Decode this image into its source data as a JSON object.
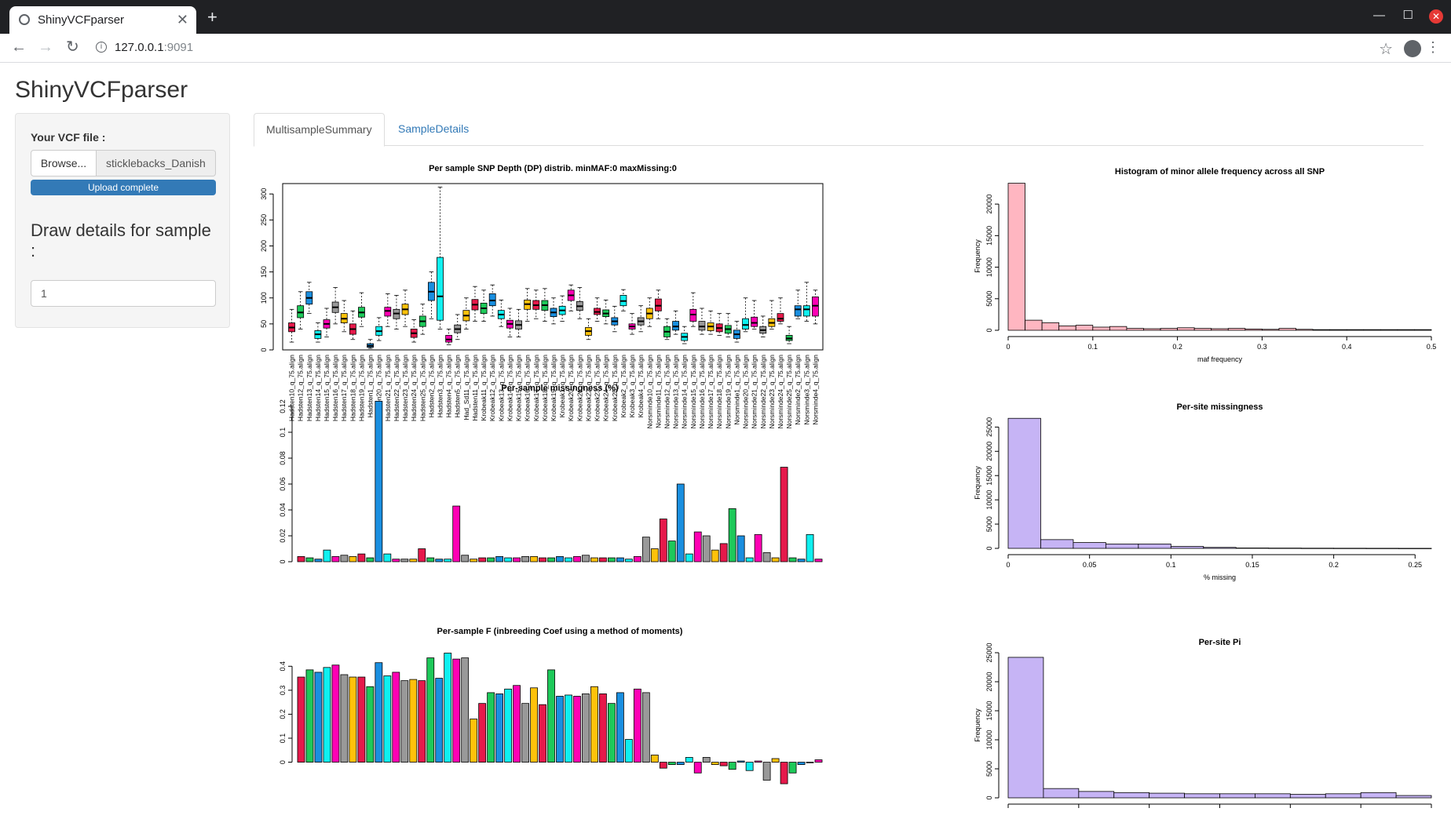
{
  "browser": {
    "tab_title": "ShinyVCFparser",
    "url_host": "127.0.0.1",
    "url_port": ":9091",
    "icons": [
      "favicon-icon",
      "close-icon",
      "new-tab-icon",
      "back-icon",
      "forward-icon",
      "reload-icon",
      "info-icon",
      "bookmark-star-icon",
      "profile-icon",
      "menu-icon"
    ]
  },
  "app": {
    "title": "ShinyVCFparser",
    "sidebar": {
      "vcf_label": "Your VCF file :",
      "browse_label": "Browse...",
      "file_name": "sticklebacks_Danish",
      "upload_status": "Upload complete",
      "draw_label": "Draw details for sample :",
      "sample_value": "1"
    },
    "tabs": [
      {
        "label": "MultisampleSummary",
        "active": true
      },
      {
        "label": "SampleDetails",
        "active": false
      }
    ]
  },
  "colors": {
    "palette": [
      "#e6194b",
      "#1ec95a",
      "#1a8fe0",
      "#0ff0f0",
      "#ff00b4",
      "#999999",
      "#ffc20a"
    ],
    "pink": "#ffb6c1",
    "lavender": "#c6b4f5",
    "progress": "#337ab7",
    "link": "#337ab7"
  },
  "samples": [
    "Hadsten10_q_75.align",
    "Hadsten12_q_75.align",
    "Hadsten13_q_75.align",
    "Hadsten14_q_75.align",
    "Hadsten15_q_75.align",
    "Hadsten16_q_75.align",
    "Hadsten17_q_75.align",
    "Hadsten18_q_75.align",
    "Hadsten19_q_75.align",
    "Hadsten1_q_75.align",
    "Hadsten20_q_75.align",
    "Hadsten21_q_75.align",
    "Hadsten22_q_75.align",
    "Hadsten23_q_75.align",
    "Hadsten24_q_75.align",
    "Hadsten25_q_75.align",
    "Hadsten2_q_75.align",
    "Hadsten3_q_75.align",
    "Hadsten4_q_75.align",
    "Hadsten5_q_75.align",
    "Had_Sd11_q_75.align",
    "Hadsten11_q_75.align",
    "Krobeak11_q_75.align",
    "Krobeak12_q_75.align",
    "Krobeak13_q_75.align",
    "Krobeak14_q_75.align",
    "Krobeak15_q_75.align",
    "Krobeak16_q_75.align",
    "Krobeak17_q_75.align",
    "Krobeak18_q_75.align",
    "Krobeak19_q_75.align",
    "Krobeak1_q_75.align",
    "Krobeak20_q_75.align",
    "Krobeak21_q_75.align",
    "Krobeak22_q_75.align",
    "Krobeak23_q_75.align",
    "Krobeak24_q_75.align",
    "Krobeak25_q_75.align",
    "Krobeak2_q_75.align",
    "Krobeak3_q_75.align",
    "Krobeak4_q_75.align",
    "Norsminde10_q_75.align",
    "Norsminde11_q_75.align",
    "Norsminde12_q_75.align",
    "Norsminde13_q_75.align",
    "Norsminde14_q_75.align",
    "Norsminde15_q_75.align",
    "Norsminde16_q_75.align",
    "Norsminde17_q_75.align",
    "Norsminde18_q_75.align",
    "Norsminde19_q_75.align",
    "Norsminde1_q_75.align",
    "Norsminde20_q_75.align",
    "Norsminde21_q_75.align",
    "Norsminde22_q_75.align",
    "Norsminde23_q_75.align",
    "Norsminde24_q_75.align",
    "Norsminde25_q_75.align",
    "Norsminde2_q_75.align",
    "Norsminde3_q_75.align",
    "Norsminde4_q_75.align"
  ],
  "chart_data": [
    {
      "type": "box",
      "title": "Per sample SNP Depth (DP) distrib. minMAF:0 maxMissing:0",
      "ylim": [
        0,
        320
      ],
      "yticks": [
        0,
        50,
        100,
        150,
        200,
        250,
        300
      ],
      "boxes": [
        {
          "low": 15,
          "q1": 35,
          "med": 43,
          "q3": 52,
          "high": 78
        },
        {
          "low": 40,
          "q1": 62,
          "med": 72,
          "q3": 85,
          "high": 112
        },
        {
          "low": 70,
          "q1": 88,
          "med": 100,
          "q3": 112,
          "high": 130
        },
        {
          "low": 15,
          "q1": 22,
          "med": 30,
          "q3": 37,
          "high": 52
        },
        {
          "low": 25,
          "q1": 42,
          "med": 50,
          "q3": 58,
          "high": 80
        },
        {
          "low": 50,
          "q1": 72,
          "med": 82,
          "q3": 92,
          "high": 120
        },
        {
          "low": 35,
          "q1": 52,
          "med": 60,
          "q3": 70,
          "high": 95
        },
        {
          "low": 20,
          "q1": 30,
          "med": 40,
          "q3": 50,
          "high": 75
        },
        {
          "low": 45,
          "q1": 63,
          "med": 72,
          "q3": 82,
          "high": 110
        },
        {
          "low": 3,
          "q1": 5,
          "med": 8,
          "q3": 12,
          "high": 20
        },
        {
          "low": 18,
          "q1": 28,
          "med": 36,
          "q3": 45,
          "high": 62
        },
        {
          "low": 45,
          "q1": 65,
          "med": 75,
          "q3": 82,
          "high": 108
        },
        {
          "low": 40,
          "q1": 60,
          "med": 70,
          "q3": 78,
          "high": 105
        },
        {
          "low": 45,
          "q1": 68,
          "med": 78,
          "q3": 88,
          "high": 115
        },
        {
          "low": 15,
          "q1": 24,
          "med": 32,
          "q3": 40,
          "high": 58
        },
        {
          "low": 30,
          "q1": 45,
          "med": 55,
          "q3": 65,
          "high": 88
        },
        {
          "low": 60,
          "q1": 95,
          "med": 112,
          "q3": 130,
          "high": 150
        },
        {
          "low": 40,
          "q1": 57,
          "med": 103,
          "q3": 178,
          "high": 313
        },
        {
          "low": 10,
          "q1": 15,
          "med": 20,
          "q3": 28,
          "high": 40
        },
        {
          "low": 20,
          "q1": 33,
          "med": 40,
          "q3": 48,
          "high": 68
        },
        {
          "low": 40,
          "q1": 56,
          "med": 66,
          "q3": 76,
          "high": 100
        },
        {
          "low": 55,
          "q1": 77,
          "med": 87,
          "q3": 97,
          "high": 122
        },
        {
          "low": 55,
          "q1": 70,
          "med": 80,
          "q3": 90,
          "high": 115
        },
        {
          "low": 65,
          "q1": 85,
          "med": 95,
          "q3": 108,
          "high": 125
        },
        {
          "low": 45,
          "q1": 60,
          "med": 68,
          "q3": 76,
          "high": 96
        },
        {
          "low": 25,
          "q1": 42,
          "med": 50,
          "q3": 57,
          "high": 80
        },
        {
          "low": 25,
          "q1": 40,
          "med": 48,
          "q3": 56,
          "high": 78
        },
        {
          "low": 55,
          "q1": 78,
          "med": 88,
          "q3": 96,
          "high": 118
        },
        {
          "low": 60,
          "q1": 78,
          "med": 86,
          "q3": 95,
          "high": 115
        },
        {
          "low": 55,
          "q1": 76,
          "med": 86,
          "q3": 95,
          "high": 118
        },
        {
          "low": 50,
          "q1": 64,
          "med": 72,
          "q3": 80,
          "high": 100
        },
        {
          "low": 55,
          "q1": 68,
          "med": 76,
          "q3": 84,
          "high": 104
        },
        {
          "low": 75,
          "q1": 95,
          "med": 105,
          "q3": 115,
          "high": 125
        },
        {
          "low": 60,
          "q1": 76,
          "med": 84,
          "q3": 93,
          "high": 120
        },
        {
          "low": 20,
          "q1": 28,
          "med": 36,
          "q3": 43,
          "high": 60
        },
        {
          "low": 55,
          "q1": 68,
          "med": 73,
          "q3": 80,
          "high": 100
        },
        {
          "low": 50,
          "q1": 64,
          "med": 70,
          "q3": 77,
          "high": 96
        },
        {
          "low": 35,
          "q1": 48,
          "med": 55,
          "q3": 62,
          "high": 84
        },
        {
          "low": 75,
          "q1": 85,
          "med": 94,
          "q3": 105,
          "high": 116
        },
        {
          "low": 30,
          "q1": 40,
          "med": 45,
          "q3": 50,
          "high": 70
        },
        {
          "low": 35,
          "q1": 48,
          "med": 55,
          "q3": 62,
          "high": 85
        },
        {
          "low": 45,
          "q1": 60,
          "med": 70,
          "q3": 80,
          "high": 100
        },
        {
          "low": 60,
          "q1": 75,
          "med": 85,
          "q3": 98,
          "high": 115
        },
        {
          "low": 20,
          "q1": 25,
          "med": 35,
          "q3": 45,
          "high": 60
        },
        {
          "low": 30,
          "q1": 38,
          "med": 45,
          "q3": 55,
          "high": 75
        },
        {
          "low": 12,
          "q1": 18,
          "med": 25,
          "q3": 32,
          "high": 45
        },
        {
          "low": 45,
          "q1": 55,
          "med": 68,
          "q3": 78,
          "high": 110
        },
        {
          "low": 30,
          "q1": 38,
          "med": 45,
          "q3": 55,
          "high": 80
        },
        {
          "low": 30,
          "q1": 37,
          "med": 45,
          "q3": 52,
          "high": 75
        },
        {
          "low": 28,
          "q1": 35,
          "med": 42,
          "q3": 50,
          "high": 70
        },
        {
          "low": 25,
          "q1": 32,
          "med": 40,
          "q3": 47,
          "high": 70
        },
        {
          "low": 15,
          "q1": 22,
          "med": 30,
          "q3": 38,
          "high": 55
        },
        {
          "low": 35,
          "q1": 40,
          "med": 48,
          "q3": 60,
          "high": 100
        },
        {
          "low": 40,
          "q1": 45,
          "med": 52,
          "q3": 63,
          "high": 95
        },
        {
          "low": 25,
          "q1": 32,
          "med": 38,
          "q3": 45,
          "high": 65
        },
        {
          "low": 40,
          "q1": 45,
          "med": 52,
          "q3": 60,
          "high": 95
        },
        {
          "low": 50,
          "q1": 55,
          "med": 60,
          "q3": 70,
          "high": 100
        },
        {
          "low": 12,
          "q1": 18,
          "med": 22,
          "q3": 28,
          "high": 45
        },
        {
          "low": 60,
          "q1": 65,
          "med": 78,
          "q3": 85,
          "high": 115
        },
        {
          "low": 55,
          "q1": 65,
          "med": 78,
          "q3": 85,
          "high": 130
        },
        {
          "low": 50,
          "q1": 65,
          "med": 85,
          "q3": 102,
          "high": 115
        }
      ]
    },
    {
      "type": "bar",
      "title": "Per-sample missingness (%)",
      "ylim": [
        0,
        0.12
      ],
      "yticks": [
        0.0,
        0.02,
        0.04,
        0.06,
        0.08,
        0.1,
        0.12
      ],
      "values": [
        0.004,
        0.003,
        0.002,
        0.009,
        0.004,
        0.005,
        0.004,
        0.006,
        0.003,
        0.124,
        0.006,
        0.002,
        0.002,
        0.002,
        0.01,
        0.003,
        0.002,
        0.002,
        0.043,
        0.005,
        0.002,
        0.003,
        0.003,
        0.004,
        0.003,
        0.003,
        0.004,
        0.004,
        0.003,
        0.003,
        0.004,
        0.003,
        0.004,
        0.005,
        0.003,
        0.003,
        0.003,
        0.003,
        0.002,
        0.004,
        0.019,
        0.01,
        0.033,
        0.016,
        0.06,
        0.006,
        0.023,
        0.02,
        0.009,
        0.014,
        0.041,
        0.02,
        0.003,
        0.021,
        0.007,
        0.003,
        0.073,
        0.003,
        0.002,
        0.021,
        0.002
      ]
    },
    {
      "type": "bar",
      "title": "Per-sample F (inbreeding Coef using a method of moments)",
      "ylim": [
        -0.08,
        0.45
      ],
      "yticks": [
        0.0,
        0.1,
        0.2,
        0.3,
        0.4
      ],
      "values": [
        0.355,
        0.385,
        0.375,
        0.395,
        0.405,
        0.365,
        0.355,
        0.355,
        0.315,
        0.415,
        0.36,
        0.375,
        0.34,
        0.345,
        0.34,
        0.435,
        0.35,
        0.455,
        0.43,
        0.435,
        0.18,
        0.245,
        0.29,
        0.285,
        0.305,
        0.32,
        0.245,
        0.31,
        0.24,
        0.385,
        0.275,
        0.28,
        0.275,
        0.285,
        0.315,
        0.285,
        0.245,
        0.29,
        0.095,
        0.305,
        0.29,
        0.03,
        -0.025,
        -0.01,
        -0.01,
        0.02,
        -0.045,
        0.02,
        -0.01,
        -0.015,
        -0.03,
        0.005,
        -0.035,
        0.005,
        -0.075,
        0.015,
        -0.09,
        -0.045,
        -0.01,
        0.0,
        0.01
      ]
    },
    {
      "type": "histogram",
      "title": "Histogram of minor allele frequency across all SNP",
      "xlabel": "maf frequency",
      "ylabel": "Frequency",
      "xlim": [
        0,
        0.5
      ],
      "xticks": [
        0.0,
        0.1,
        0.2,
        0.3,
        0.4,
        0.5
      ],
      "ylim": [
        0,
        23500
      ],
      "yticks": [
        0,
        5000,
        10000,
        15000,
        20000
      ],
      "bin_width": 0.02,
      "counts": [
        23300,
        1600,
        1200,
        700,
        800,
        500,
        600,
        300,
        250,
        300,
        400,
        300,
        250,
        300,
        200,
        150,
        300,
        150,
        100,
        100,
        100,
        100,
        100,
        100,
        100
      ]
    },
    {
      "type": "histogram",
      "title": "Per-site missingness",
      "xlabel": "% missing",
      "ylabel": "Frequency",
      "xlim": [
        0,
        0.26
      ],
      "xticks": [
        0.0,
        0.05,
        0.1,
        0.15,
        0.2,
        0.25
      ],
      "ylim": [
        0,
        27000
      ],
      "yticks": [
        0,
        5000,
        10000,
        15000,
        20000,
        25000
      ],
      "bin_width": 0.02,
      "counts": [
        26800,
        1800,
        1200,
        900,
        900,
        400,
        200,
        80,
        60,
        40,
        30,
        20,
        10
      ]
    },
    {
      "type": "histogram",
      "title": "Per-site Pi",
      "ylabel": "Frequency",
      "ylim": [
        0,
        25000
      ],
      "yticks": [
        0,
        5000,
        10000,
        15000,
        20000,
        25000
      ],
      "bin_width": 0.05,
      "counts": [
        24200,
        1600,
        1100,
        900,
        800,
        700,
        700,
        700,
        600,
        700,
        900,
        400
      ]
    }
  ]
}
